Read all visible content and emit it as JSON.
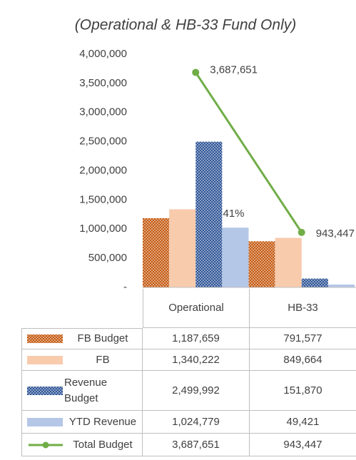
{
  "chart_data": {
    "type": "bar",
    "title": "(Operational & HB-33 Fund Only)",
    "categories": [
      "Operational",
      "HB-33"
    ],
    "series": [
      {
        "name": "FB Budget",
        "color": "#c55a11",
        "hatch": "dots",
        "values": [
          1187659,
          791577
        ],
        "value_labels": [
          "1,187,659",
          "791,577"
        ]
      },
      {
        "name": "FB",
        "color": "#f8cbad",
        "values": [
          1340222,
          849664
        ],
        "value_labels": [
          "1,340,222",
          "849,664"
        ]
      },
      {
        "name": "Revenue Budget",
        "color": "#2f5597",
        "hatch": "dots",
        "values": [
          2499992,
          151870
        ],
        "value_labels": [
          "2,499,992",
          "151,870"
        ]
      },
      {
        "name": "YTD Revenue",
        "color": "#b4c7e7",
        "values": [
          1024779,
          49421
        ],
        "value_labels": [
          "1,024,779",
          "49,421"
        ]
      },
      {
        "name": "Total Budget",
        "color": "#70ad47",
        "type": "line",
        "values": [
          3687651,
          943447
        ],
        "value_labels": [
          "3,687,651",
          "943,447"
        ]
      }
    ],
    "annotations": [
      "41%"
    ],
    "ylim": [
      0,
      4000000
    ],
    "yticks": [
      {
        "value": 0,
        "label": "-"
      },
      {
        "value": 500000,
        "label": "500,000"
      },
      {
        "value": 1000000,
        "label": "1,000,000"
      },
      {
        "value": 1500000,
        "label": "1,500,000"
      },
      {
        "value": 2000000,
        "label": "2,000,000"
      },
      {
        "value": 2500000,
        "label": "2,500,000"
      },
      {
        "value": 3000000,
        "label": "3,000,000"
      },
      {
        "value": 3500000,
        "label": "3,500,000"
      },
      {
        "value": 4000000,
        "label": "4,000,000"
      }
    ],
    "grid": false
  }
}
